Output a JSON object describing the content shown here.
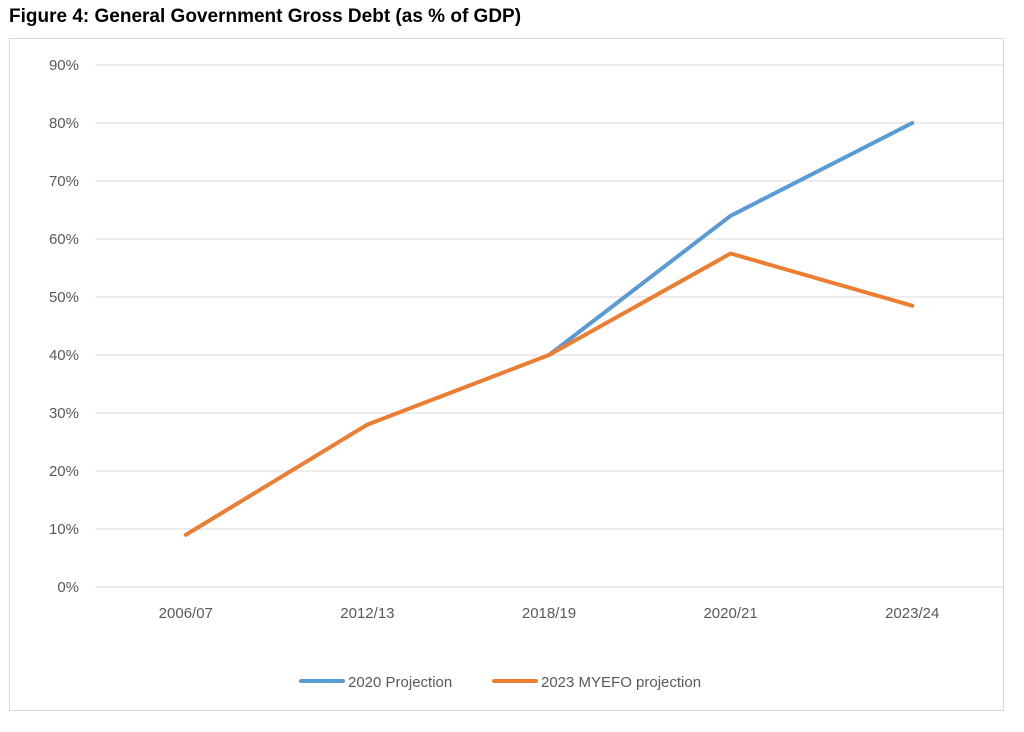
{
  "figure_title": "Figure 4: General Government Gross Debt (as % of GDP)",
  "chart_data": {
    "type": "line",
    "title": "Figure 4: General Government Gross Debt (as % of GDP)",
    "xlabel": "",
    "ylabel": "",
    "categories": [
      "2006/07",
      "2012/13",
      "2018/19",
      "2020/21",
      "2023/24"
    ],
    "ylim": [
      0,
      90
    ],
    "y_ticks": [
      0,
      10,
      20,
      30,
      40,
      50,
      60,
      70,
      80,
      90
    ],
    "y_tick_format": "percent",
    "grid": true,
    "legend_position": "bottom",
    "series": [
      {
        "name": "2020 Projection",
        "color": "#5b9bd5",
        "values": [
          null,
          null,
          40,
          64,
          80
        ]
      },
      {
        "name": "2023 MYEFO projection",
        "color": "#ed7d31",
        "values": [
          9,
          28,
          40,
          57.5,
          48.5
        ]
      }
    ]
  }
}
